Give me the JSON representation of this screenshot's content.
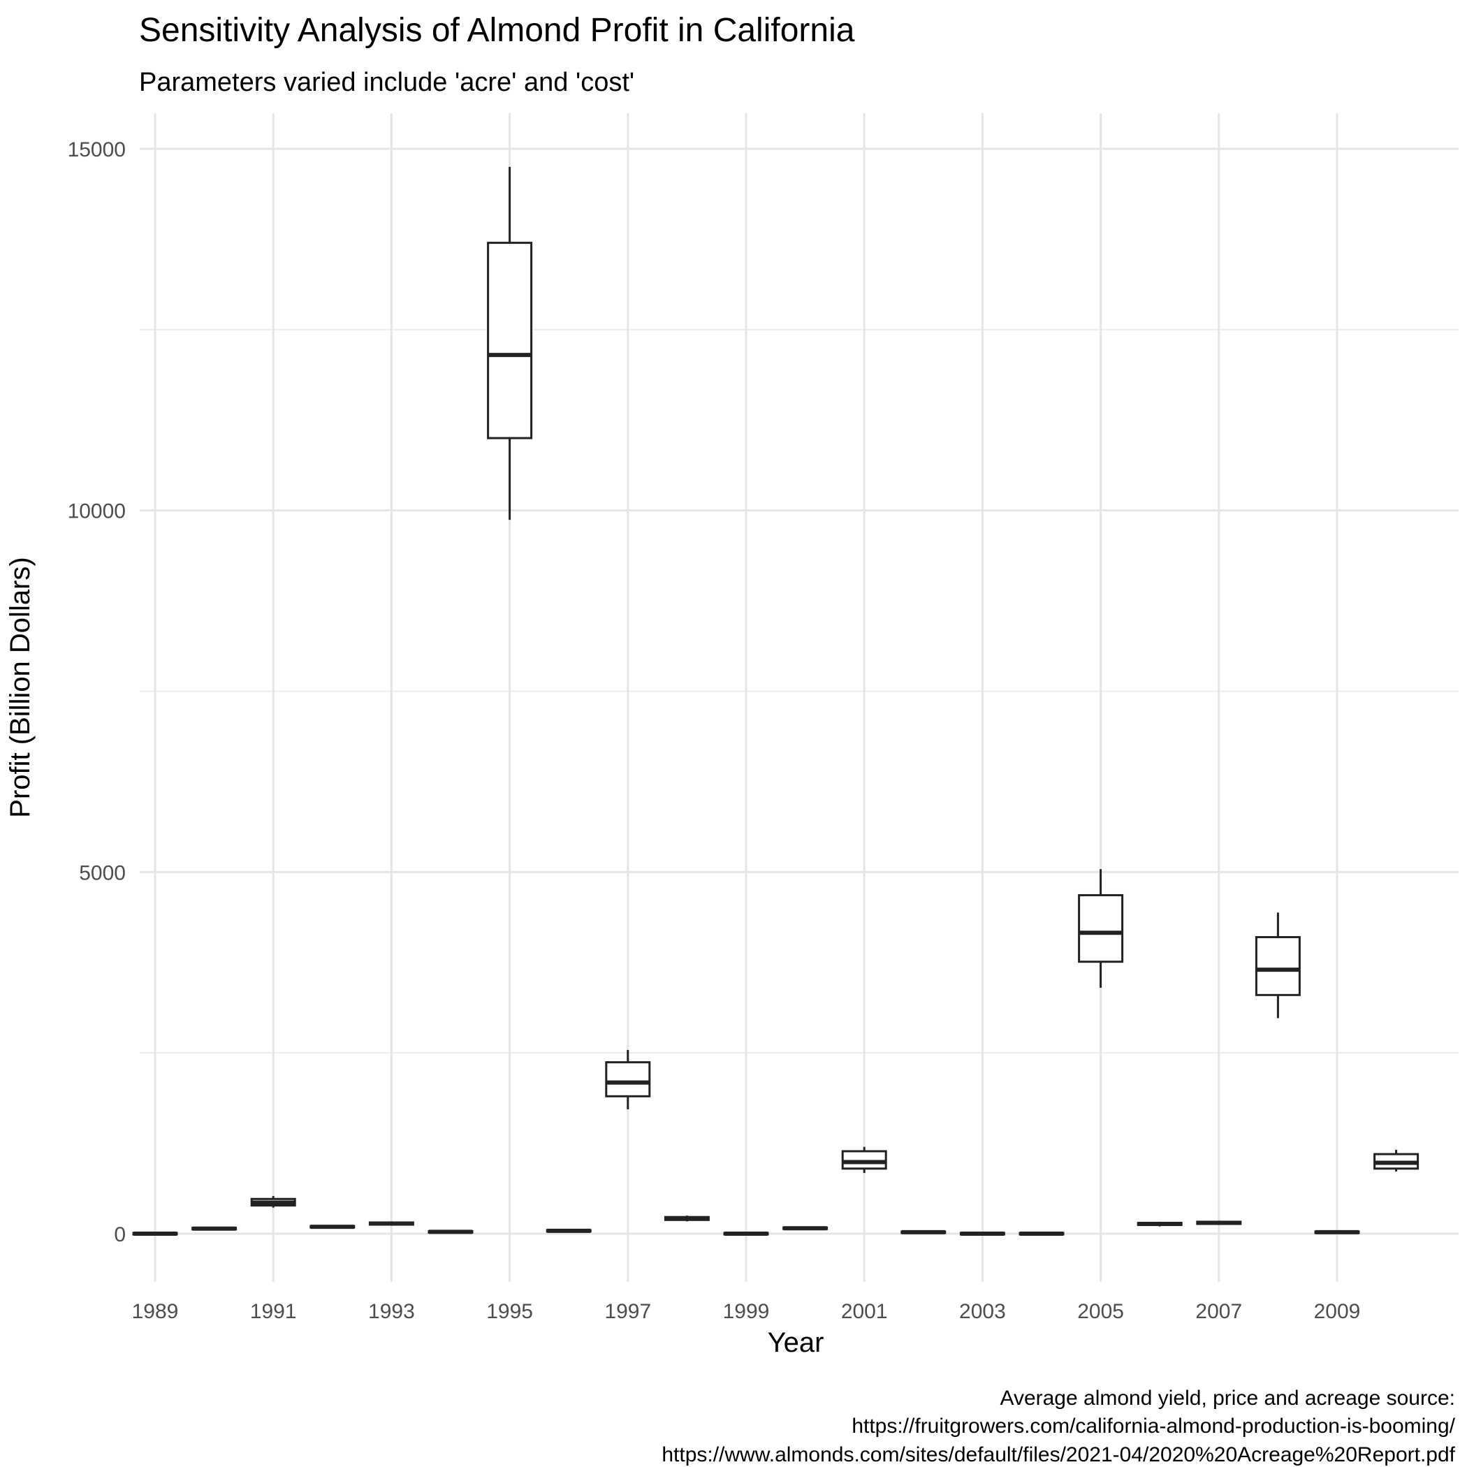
{
  "chart_data": {
    "type": "boxplot",
    "title": "Sensitivity Analysis of Almond Profit in California",
    "subtitle": "Parameters varied include 'acre' and 'cost'",
    "xlabel": "Year",
    "ylabel": "Profit (Billion Dollars)",
    "caption": [
      "Average almond yield, price and acreage source:",
      "https://fruitgrowers.com/california-almond-production-is-booming/",
      "https://www.almonds.com/sites/default/files/2021-04/2020%20Acreage%20Report.pdf"
    ],
    "x_tick_labels": [
      "1989",
      "1991",
      "1993",
      "1995",
      "1997",
      "1999",
      "2001",
      "2003",
      "2005",
      "2007",
      "2009"
    ],
    "y_tick_labels": [
      "0",
      "5000",
      "10000",
      "15000"
    ],
    "y_ticks": [
      0,
      5000,
      10000,
      15000
    ],
    "ylim": [
      -500,
      15500
    ],
    "grid": true,
    "legend": "none",
    "categories": [
      "1989",
      "1990",
      "1991",
      "1992",
      "1993",
      "1994",
      "1995",
      "1996",
      "1997",
      "1998",
      "1999",
      "2000",
      "2001",
      "2002",
      "2003",
      "2004",
      "2005",
      "2006",
      "2007",
      "2008",
      "2009",
      "2010"
    ],
    "boxes": [
      {
        "x": "1989",
        "min": -20,
        "q1": -10,
        "median": 0,
        "q3": 10,
        "max": 20
      },
      {
        "x": "1990",
        "min": 45,
        "q1": 60,
        "median": 70,
        "q3": 80,
        "max": 95
      },
      {
        "x": "1991",
        "min": 360,
        "q1": 390,
        "median": 430,
        "q3": 480,
        "max": 520
      },
      {
        "x": "1992",
        "min": 70,
        "q1": 85,
        "median": 95,
        "q3": 105,
        "max": 120
      },
      {
        "x": "1993",
        "min": 110,
        "q1": 125,
        "median": 140,
        "q3": 155,
        "max": 170
      },
      {
        "x": "1994",
        "min": 5,
        "q1": 15,
        "median": 25,
        "q3": 35,
        "max": 45
      },
      {
        "x": "1995",
        "min": 9870,
        "q1": 11000,
        "median": 12150,
        "q3": 13700,
        "max": 14750
      },
      {
        "x": "1996",
        "min": 20,
        "q1": 30,
        "median": 40,
        "q3": 50,
        "max": 60
      },
      {
        "x": "1997",
        "min": 1720,
        "q1": 1900,
        "median": 2090,
        "q3": 2370,
        "max": 2540
      },
      {
        "x": "1998",
        "min": 170,
        "q1": 190,
        "median": 210,
        "q3": 230,
        "max": 250
      },
      {
        "x": "1999",
        "min": -20,
        "q1": -10,
        "median": 0,
        "q3": 10,
        "max": 20
      },
      {
        "x": "2000",
        "min": 50,
        "q1": 65,
        "median": 75,
        "q3": 85,
        "max": 100
      },
      {
        "x": "2001",
        "min": 840,
        "q1": 900,
        "median": 990,
        "q3": 1140,
        "max": 1200
      },
      {
        "x": "2002",
        "min": 0,
        "q1": 10,
        "median": 20,
        "q3": 30,
        "max": 40
      },
      {
        "x": "2003",
        "min": -20,
        "q1": -10,
        "median": 0,
        "q3": 10,
        "max": 20
      },
      {
        "x": "2004",
        "min": -20,
        "q1": -10,
        "median": 0,
        "q3": 10,
        "max": 20
      },
      {
        "x": "2005",
        "min": 3400,
        "q1": 3760,
        "median": 4160,
        "q3": 4680,
        "max": 5040
      },
      {
        "x": "2006",
        "min": 100,
        "q1": 120,
        "median": 135,
        "q3": 150,
        "max": 165
      },
      {
        "x": "2007",
        "min": 120,
        "q1": 135,
        "median": 150,
        "q3": 165,
        "max": 180
      },
      {
        "x": "2008",
        "min": 2980,
        "q1": 3300,
        "median": 3650,
        "q3": 4100,
        "max": 4440
      },
      {
        "x": "2009",
        "min": 0,
        "q1": 10,
        "median": 20,
        "q3": 30,
        "max": 40
      },
      {
        "x": "2010",
        "min": 860,
        "q1": 900,
        "median": 980,
        "q3": 1100,
        "max": 1160
      }
    ]
  }
}
